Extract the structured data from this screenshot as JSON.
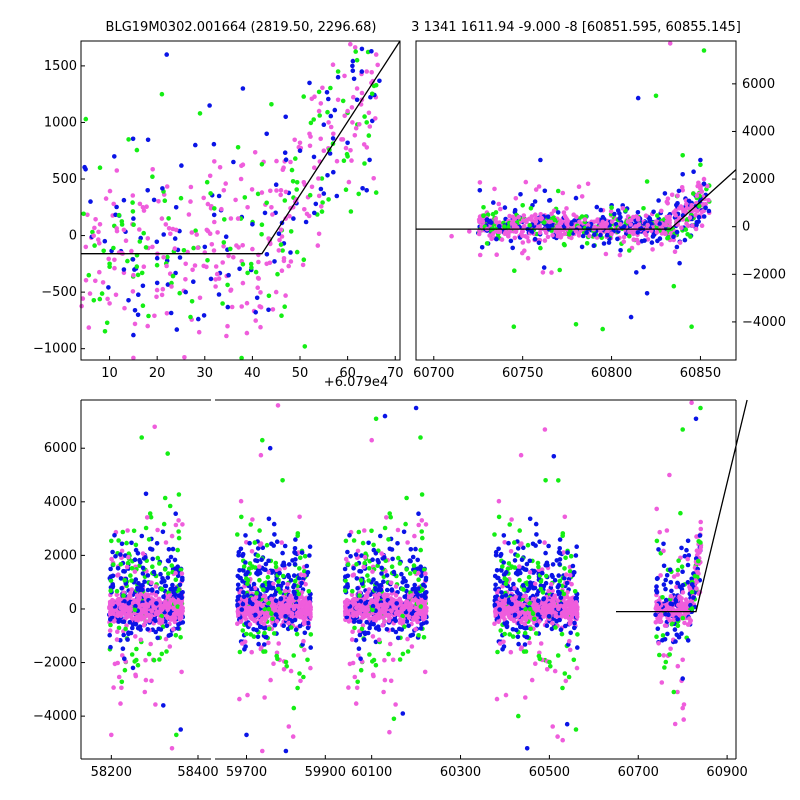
{
  "colors": {
    "blue": "#0a14e6",
    "green": "#14ee14",
    "magenta": "#ef5ddc",
    "line": "#000000"
  },
  "chart_data": [
    {
      "type": "scatter",
      "title": "BLG19M0302.001664 (2819.50, 2296.68)",
      "xlabel": "",
      "ylabel": "",
      "x_offset_label": "+6.079e4",
      "xlim": [
        4,
        71
      ],
      "ylim": [
        -1100,
        1720
      ],
      "xticks": [
        10,
        20,
        30,
        40,
        50,
        60,
        70
      ],
      "yticks": [
        -1000,
        -500,
        0,
        500,
        1000,
        1500
      ],
      "xtick_labels": [
        "10",
        "20",
        "30",
        "40",
        "50",
        "60",
        "70"
      ],
      "ytick_labels": [
        "−1000",
        "−500",
        "0",
        "500",
        "1000",
        "1500"
      ],
      "series": [
        {
          "name": "blue",
          "color_key": "blue",
          "points": [
            [
              6,
              300
            ],
            [
              9,
              -50
            ],
            [
              11,
              700
            ],
            [
              13,
              -300
            ],
            [
              15,
              150
            ],
            [
              16,
              -700
            ],
            [
              18,
              400
            ],
            [
              20,
              -200
            ],
            [
              22,
              1600
            ],
            [
              24,
              250
            ],
            [
              26,
              -500
            ],
            [
              28,
              800
            ],
            [
              30,
              -100
            ],
            [
              31,
              1150
            ],
            [
              33,
              350
            ],
            [
              35,
              -350
            ],
            [
              36,
              650
            ],
            [
              38,
              1300
            ],
            [
              40,
              100
            ],
            [
              41,
              -550
            ],
            [
              43,
              900
            ],
            [
              45,
              450
            ],
            [
              47,
              1050
            ],
            [
              48,
              -150
            ],
            [
              50,
              750
            ],
            [
              52,
              1350
            ],
            [
              53,
              200
            ],
            [
              55,
              980
            ],
            [
              57,
              560
            ],
            [
              58,
              1400
            ],
            [
              60,
              820
            ],
            [
              61,
              1500
            ],
            [
              62,
              1200
            ],
            [
              63,
              1650
            ],
            [
              64,
              400
            ]
          ]
        },
        {
          "name": "green",
          "color_key": "green",
          "points": [
            [
              5,
              1030
            ],
            [
              8,
              600
            ],
            [
              10,
              -250
            ],
            [
              12,
              180
            ],
            [
              14,
              850
            ],
            [
              17,
              -620
            ],
            [
              19,
              520
            ],
            [
              21,
              1250
            ],
            [
              23,
              -420
            ],
            [
              25,
              330
            ],
            [
              27,
              -720
            ],
            [
              29,
              1080
            ],
            [
              32,
              240
            ],
            [
              34,
              -60
            ],
            [
              37,
              780
            ],
            [
              39,
              -330
            ],
            [
              42,
              630
            ],
            [
              44,
              1160
            ],
            [
              46,
              -80
            ],
            [
              49,
              680
            ],
            [
              51,
              -980
            ],
            [
              54,
              1270
            ],
            [
              56,
              320
            ],
            [
              58,
              1450
            ],
            [
              60,
              700
            ],
            [
              62,
              1550
            ],
            [
              64,
              1000
            ],
            [
              66,
              380
            ]
          ]
        },
        {
          "name": "magenta",
          "color_key": "magenta",
          "points": [
            [
              5,
              -100
            ],
            [
              7,
              -400
            ],
            [
              8,
              100
            ],
            [
              10,
              -600
            ],
            [
              12,
              -150
            ],
            [
              13,
              50
            ],
            [
              15,
              -350
            ],
            [
              17,
              250
            ],
            [
              18,
              -800
            ],
            [
              19,
              -100
            ],
            [
              21,
              150
            ],
            [
              23,
              -450
            ],
            [
              24,
              50
            ],
            [
              26,
              -250
            ],
            [
              27,
              300
            ],
            [
              29,
              -550
            ],
            [
              30,
              -150
            ],
            [
              32,
              120
            ],
            [
              33,
              -380
            ],
            [
              34,
              400
            ],
            [
              35,
              -180
            ],
            [
              37,
              150
            ],
            [
              38,
              -420
            ],
            [
              39,
              250
            ],
            [
              40,
              -120
            ],
            [
              42,
              380
            ],
            [
              43,
              -250
            ],
            [
              44,
              250
            ],
            [
              45,
              -500
            ],
            [
              46,
              400
            ],
            [
              47,
              150
            ],
            [
              48,
              650
            ],
            [
              49,
              300
            ],
            [
              50,
              820
            ],
            [
              51,
              450
            ],
            [
              52,
              900
            ],
            [
              53,
              600
            ],
            [
              54,
              1100
            ],
            [
              55,
              750
            ],
            [
              56,
              1000
            ],
            [
              57,
              900
            ],
            [
              58,
              1200
            ],
            [
              59,
              850
            ],
            [
              60,
              1100
            ],
            [
              61,
              1000
            ],
            [
              62,
              1300
            ],
            [
              63,
              1200
            ],
            [
              64,
              1450
            ],
            [
              65,
              1350
            ],
            [
              66,
              1600
            ]
          ]
        }
      ],
      "model_line": {
        "x": [
          4,
          42,
          71
        ],
        "y": [
          -160,
          -160,
          1720
        ]
      }
    },
    {
      "type": "scatter",
      "title": "3 1341 1611.94 -9.000 -8 [60851.595, 60855.145]",
      "xlabel": "",
      "ylabel": "",
      "xlim": [
        60690,
        60870
      ],
      "ylim": [
        -5600,
        7800
      ],
      "xticks": [
        60700,
        60750,
        60800,
        60850
      ],
      "yticks": [
        -4000,
        -2000,
        0,
        2000,
        4000,
        6000
      ],
      "xtick_labels": [
        "60700",
        "60750",
        "60800",
        "60850"
      ],
      "ytick_labels": [
        "−4000",
        "−2000",
        "0",
        "2000",
        "4000",
        "6000"
      ],
      "series": [
        {
          "name": "blue",
          "color_key": "blue",
          "points": [
            [
              60730,
              300
            ],
            [
              60740,
              800
            ],
            [
              60755,
              -200
            ],
            [
              60765,
              1100
            ],
            [
              60770,
              600
            ],
            [
              60780,
              1200
            ],
            [
              60790,
              -800
            ],
            [
              60800,
              900
            ],
            [
              60805,
              400
            ],
            [
              60815,
              5400
            ],
            [
              60820,
              -2800
            ],
            [
              60830,
              1400
            ],
            [
              60840,
              2200
            ],
            [
              60845,
              1000
            ],
            [
              60850,
              2800
            ],
            [
              60852,
              1800
            ],
            [
              60811,
              -3800
            ],
            [
              60760,
              2800
            ]
          ]
        },
        {
          "name": "green",
          "color_key": "green",
          "points": [
            [
              60730,
              -700
            ],
            [
              60735,
              600
            ],
            [
              60745,
              -4200
            ],
            [
              60750,
              900
            ],
            [
              60760,
              -900
            ],
            [
              60770,
              1500
            ],
            [
              60780,
              -4100
            ],
            [
              60785,
              200
            ],
            [
              60795,
              -4300
            ],
            [
              60800,
              800
            ],
            [
              60810,
              -1000
            ],
            [
              60820,
              1900
            ],
            [
              60825,
              5500
            ],
            [
              60835,
              -2500
            ],
            [
              60840,
              3000
            ],
            [
              60845,
              -4200
            ],
            [
              60850,
              2600
            ],
            [
              60852,
              7400
            ],
            [
              60848,
              1200
            ]
          ]
        },
        {
          "name": "magenta",
          "color_key": "magenta",
          "points": [
            [
              60710,
              -400
            ],
            [
              60720,
              -200
            ],
            [
              60730,
              -100
            ],
            [
              60735,
              200
            ],
            [
              60740,
              -300
            ],
            [
              60745,
              100
            ],
            [
              60750,
              -200
            ],
            [
              60755,
              300
            ],
            [
              60760,
              -100
            ],
            [
              60765,
              200
            ],
            [
              60770,
              -300
            ],
            [
              60775,
              100
            ],
            [
              60780,
              -200
            ],
            [
              60785,
              300
            ],
            [
              60790,
              -100
            ],
            [
              60795,
              200
            ],
            [
              60800,
              -300
            ],
            [
              60805,
              100
            ],
            [
              60810,
              -200
            ],
            [
              60815,
              300
            ],
            [
              60820,
              -100
            ],
            [
              60825,
              200
            ],
            [
              60830,
              -300
            ],
            [
              60835,
              600
            ],
            [
              60840,
              300
            ],
            [
              60845,
              900
            ],
            [
              60848,
              1300
            ],
            [
              60850,
              1600
            ],
            [
              60852,
              2000
            ],
            [
              60833,
              7700
            ]
          ]
        }
      ],
      "model_line": {
        "x": [
          60690,
          60833,
          60870
        ],
        "y": [
          -100,
          -100,
          2400
        ]
      }
    },
    {
      "type": "scatter",
      "title": "",
      "xlabel": "",
      "ylabel": "",
      "broken_x_axis": true,
      "ylim": [
        -5600,
        7800
      ],
      "yticks": [
        -4000,
        -2000,
        0,
        2000,
        4000,
        6000
      ],
      "ytick_labels": [
        "−4000",
        "−2000",
        "0",
        "2000",
        "4000",
        "6000"
      ],
      "segments": [
        {
          "xlim": [
            58130,
            58430
          ],
          "xticks": [
            58200,
            58400
          ],
          "xtick_labels": [
            "58200",
            "58400"
          ],
          "season_center": 58280,
          "season_half_width": 100
        },
        {
          "xlim": [
            59620,
            59950
          ],
          "xticks": [
            59700,
            59900
          ],
          "xtick_labels": [
            "59700",
            "59900"
          ],
          "season_center": 59770,
          "season_half_width": 110
        },
        {
          "xlim": [
            60040,
            60920
          ],
          "xticks": [
            60100,
            60300,
            60500,
            60700,
            60900
          ],
          "xtick_labels": [
            "60100",
            "60300",
            "60500",
            "60700",
            "60900"
          ],
          "seasons": [
            {
              "center": 60130,
              "half_width": 110
            },
            {
              "center": 60470,
              "half_width": 110
            },
            {
              "center": 60790,
              "half_width": 60
            }
          ]
        }
      ],
      "scatter_description_points": {
        "blue": [
          [
            58250,
            -2200
          ],
          [
            58280,
            4300
          ],
          [
            58320,
            -3600
          ],
          [
            58360,
            -4500
          ],
          [
            59700,
            -4700
          ],
          [
            59760,
            6000
          ],
          [
            59800,
            -5300
          ],
          [
            60130,
            7200
          ],
          [
            60170,
            -3900
          ],
          [
            60200,
            7500
          ],
          [
            60450,
            -5200
          ],
          [
            60510,
            5700
          ],
          [
            60540,
            -4300
          ],
          [
            60830,
            7100
          ],
          [
            60800,
            -2600
          ]
        ],
        "green": [
          [
            58270,
            6400
          ],
          [
            58330,
            5800
          ],
          [
            58350,
            -4700
          ],
          [
            59740,
            6300
          ],
          [
            59820,
            -3700
          ],
          [
            60110,
            7100
          ],
          [
            60150,
            -4100
          ],
          [
            60210,
            6400
          ],
          [
            60430,
            -4000
          ],
          [
            60520,
            4800
          ],
          [
            60560,
            -4500
          ],
          [
            60800,
            6700
          ],
          [
            60840,
            7500
          ],
          [
            60780,
            -3100
          ]
        ],
        "magenta": [
          [
            58300,
            6800
          ],
          [
            58340,
            -5200
          ],
          [
            58200,
            -4700
          ],
          [
            59780,
            7600
          ],
          [
            59740,
            -5300
          ],
          [
            60100,
            6300
          ],
          [
            60140,
            -4600
          ],
          [
            60490,
            6700
          ],
          [
            60530,
            -4900
          ],
          [
            60770,
            5000
          ],
          [
            60820,
            7700
          ],
          [
            60800,
            -3700
          ]
        ]
      },
      "model_line": {
        "x": [
          60650,
          60820,
          60950
        ],
        "y": [
          -100,
          -100,
          7800
        ]
      }
    }
  ]
}
